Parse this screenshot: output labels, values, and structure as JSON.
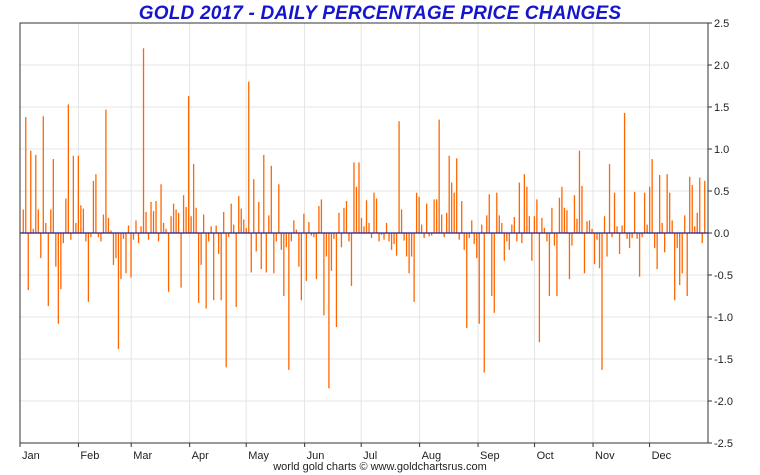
{
  "chart_data": {
    "type": "bar",
    "title": "GOLD 2017 - DAILY PERCENTAGE PRICE CHANGES",
    "xlabel": "",
    "ylabel": "",
    "ylim": [
      -2.5,
      2.5
    ],
    "yticks": [
      "2.5",
      "2.0",
      "1.5",
      "1.0",
      "0.5",
      "0.0",
      "-0.5",
      "-1.0",
      "-1.5",
      "-2.0",
      "-2.5"
    ],
    "ytick_values": [
      2.5,
      2.0,
      1.5,
      1.0,
      0.5,
      0.0,
      -0.5,
      -1.0,
      -1.5,
      -2.0,
      -2.5
    ],
    "months": [
      "Jan",
      "Feb",
      "Mar",
      "Apr",
      "May",
      "Jun",
      "Jul",
      "Aug",
      "Sep",
      "Oct",
      "Nov",
      "Dec"
    ],
    "grid": true,
    "y_axis_position": "right",
    "bar_color": "#ff6600",
    "zero_line_color": "#1a1a99",
    "title_color": "#1515cc",
    "values": [
      0.28,
      1.38,
      -0.68,
      0.98,
      0.05,
      0.93,
      0.28,
      -0.3,
      1.39,
      0.12,
      -0.87,
      0.28,
      0.88,
      -0.4,
      -1.08,
      -0.67,
      -0.12,
      0.41,
      1.53,
      -0.08,
      0.92,
      0.12,
      0.92,
      0.33,
      0.29,
      -0.1,
      -0.82,
      -0.05,
      0.62,
      0.7,
      -0.05,
      -0.1,
      0.22,
      1.47,
      0.18,
      0.03,
      -0.38,
      -0.3,
      -1.38,
      -0.55,
      -0.07,
      -0.48,
      0.09,
      -0.53,
      -0.08,
      0.15,
      -0.12,
      0.08,
      2.2,
      0.25,
      -0.08,
      0.37,
      0.26,
      0.38,
      -0.1,
      0.58,
      0.12,
      0.05,
      -0.7,
      0.2,
      0.35,
      0.28,
      0.24,
      -0.65,
      0.45,
      0.31,
      1.63,
      0.2,
      0.82,
      0.3,
      -0.83,
      -0.38,
      0.22,
      -0.9,
      -0.1,
      0.08,
      -0.8,
      0.09,
      -0.25,
      -0.8,
      0.25,
      -1.6,
      -0.05,
      0.35,
      0.1,
      -0.88,
      0.44,
      0.29,
      0.16,
      0.06,
      1.8,
      -0.47,
      0.64,
      -0.22,
      0.37,
      -0.43,
      0.93,
      -0.47,
      0.21,
      0.8,
      -0.48,
      -0.1,
      0.58,
      -0.2,
      -0.75,
      -0.17,
      -1.63,
      -0.1,
      0.15,
      0.04,
      -0.4,
      -0.8,
      0.23,
      -0.57,
      0.13,
      -0.03,
      -0.05,
      -0.55,
      0.32,
      0.4,
      -0.98,
      -0.28,
      -1.85,
      -0.45,
      -0.07,
      -1.12,
      0.24,
      -0.17,
      0.3,
      0.38,
      -0.1,
      -0.63,
      0.84,
      0.55,
      0.84,
      0.18,
      0.08,
      0.39,
      0.12,
      -0.06,
      0.48,
      0.41,
      -0.1,
      -0.02,
      -0.08,
      0.12,
      -0.1,
      -0.2,
      -0.13,
      -0.27,
      1.33,
      0.28,
      -0.09,
      -0.28,
      -0.48,
      -0.28,
      -0.82,
      0.48,
      0.43,
      0.1,
      -0.06,
      0.35,
      -0.04,
      -0.03,
      0.4,
      0.4,
      1.35,
      0.22,
      -0.05,
      0.24,
      0.92,
      0.6,
      0.48,
      0.89,
      -0.08,
      0.38,
      -0.2,
      -1.13,
      -0.06,
      0.15,
      -0.13,
      -0.3,
      -1.08,
      0.1,
      -1.66,
      0.21,
      0.46,
      -0.75,
      -0.95,
      0.48,
      0.21,
      0.12,
      -0.33,
      -0.1,
      -0.2,
      0.1,
      0.19,
      -0.1,
      0.6,
      -0.12,
      0.7,
      0.55,
      0.2,
      -0.33,
      0.2,
      0.4,
      -1.3,
      0.18,
      0.06,
      -0.1,
      -0.75,
      0.3,
      -0.15,
      -0.75,
      0.42,
      0.55,
      0.3,
      0.27,
      -0.55,
      -0.15,
      0.45,
      0.17,
      0.98,
      0.56,
      -0.48,
      0.14,
      0.15,
      0.05,
      -0.37,
      -0.08,
      -0.42,
      -1.63,
      0.2,
      -0.28,
      0.82,
      -0.05,
      0.48,
      0.08,
      -0.25,
      0.09,
      1.43,
      -0.07,
      -0.18,
      -0.06,
      0.49,
      -0.07,
      -0.52,
      -0.05,
      0.48,
      0.1,
      0.55,
      0.88,
      -0.18,
      -0.43,
      0.69,
      0.12,
      -0.23,
      0.7,
      0.48,
      0.15,
      -0.8,
      -0.18,
      -0.62,
      -0.48,
      0.21,
      -0.75,
      0.67,
      0.57,
      0.08,
      0.24,
      0.66,
      -0.12,
      0.62
    ]
  },
  "footer": {
    "credit": "world gold charts © www.goldchartsrus.com"
  }
}
